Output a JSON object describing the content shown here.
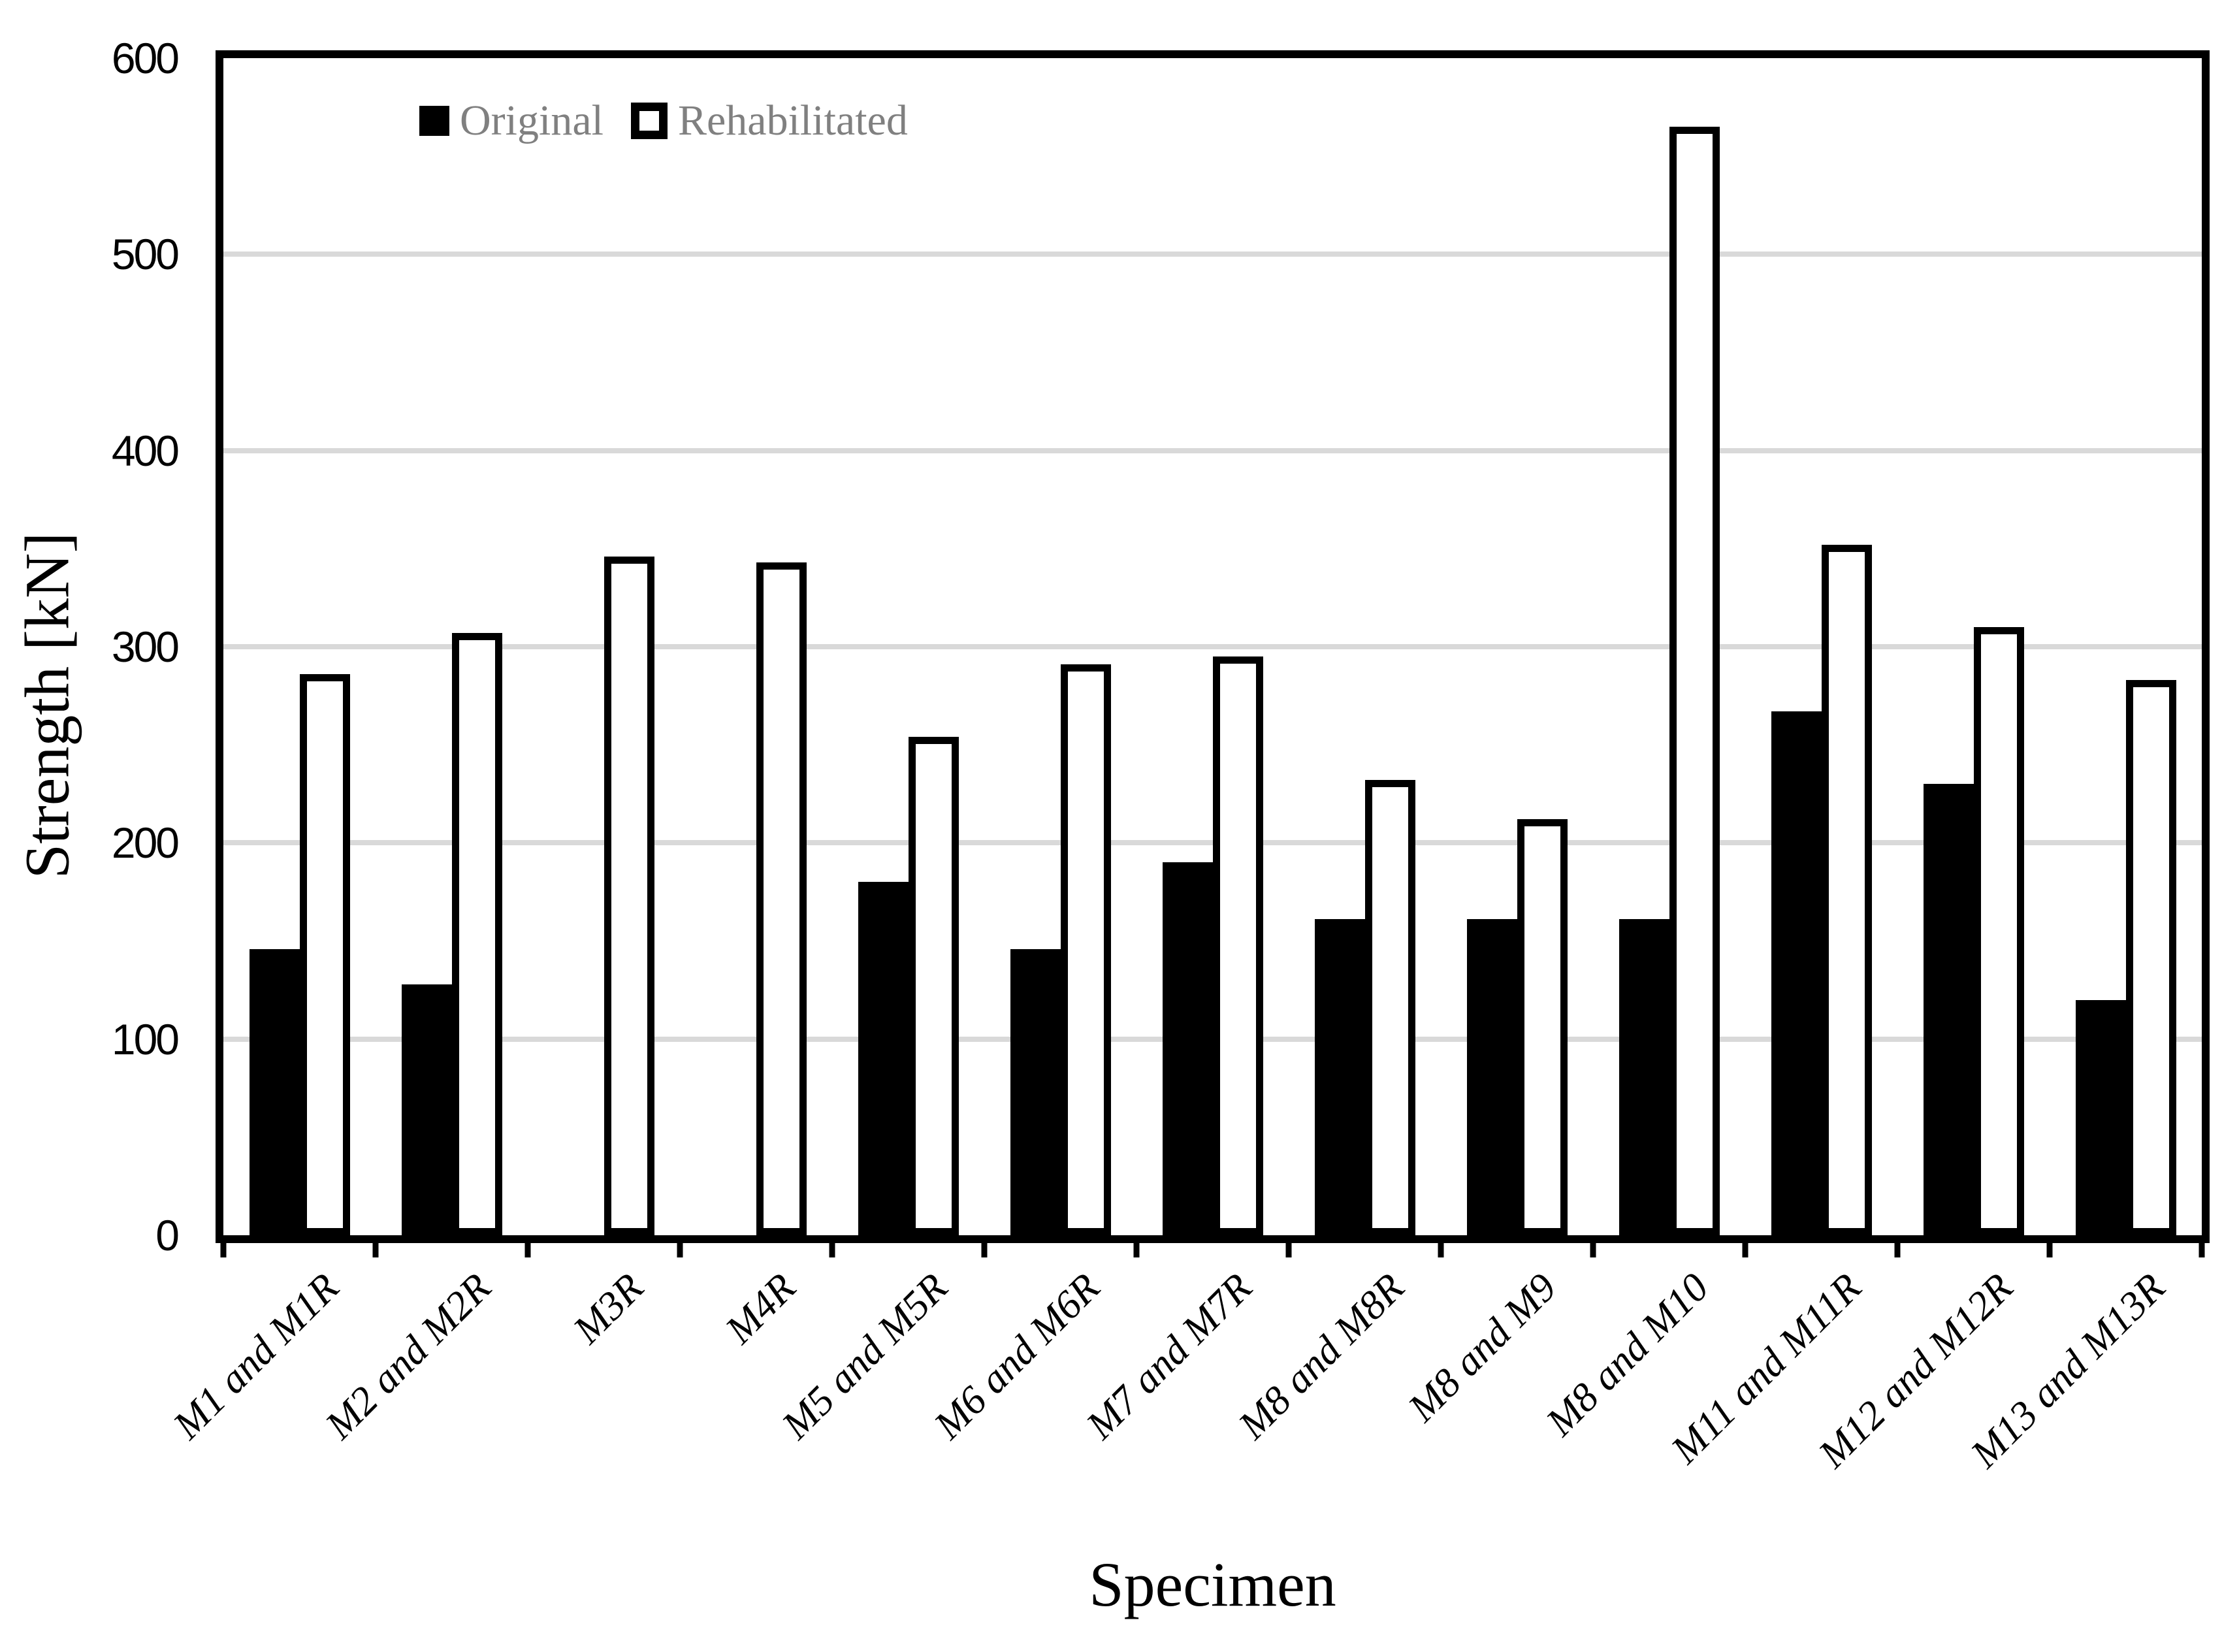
{
  "colors": {
    "background": "#ffffff",
    "bar_original_fill": "#000000",
    "bar_rehabilitated_fill": "#ffffff",
    "bar_outline": "#000000",
    "gridline": "#d9d9d9",
    "legend_text": "#808080",
    "axis_text": "#000000"
  },
  "legend": {
    "items": [
      {
        "label": "Original",
        "marker": "black-filled-square"
      },
      {
        "label": "Rehabilitated",
        "marker": "white-open-square"
      }
    ],
    "position": "top-left-inside-plot"
  },
  "chart_data": {
    "type": "bar",
    "title": "",
    "xlabel": "Specimen",
    "ylabel": "Strength [kN]",
    "ylim": [
      0,
      600
    ],
    "yticks": [
      0,
      100,
      200,
      300,
      400,
      500,
      600
    ],
    "grid": "horizontal gridlines every 100 kN",
    "legend_position": "top-left inside plot area",
    "categories": [
      "M1 and M1R",
      "M2 and M2R",
      "M3R",
      "M4R",
      "M5 and M5R",
      "M6 and M6R",
      "M7 and M7R",
      "M8 and M8R",
      "M8 and M9",
      "M8 and M10",
      "M11 and M11R",
      "M12 and M12R",
      "M13 and M13R"
    ],
    "series": [
      {
        "name": "Original",
        "style": "solid-black",
        "values": [
          146,
          128,
          null,
          null,
          180,
          146,
          190,
          161,
          161,
          161,
          267,
          230,
          120
        ]
      },
      {
        "name": "Rehabilitated",
        "style": "white-with-black-outline",
        "values": [
          286,
          307,
          346,
          343,
          254,
          291,
          295,
          232,
          212,
          565,
          352,
          310,
          283
        ]
      }
    ]
  }
}
